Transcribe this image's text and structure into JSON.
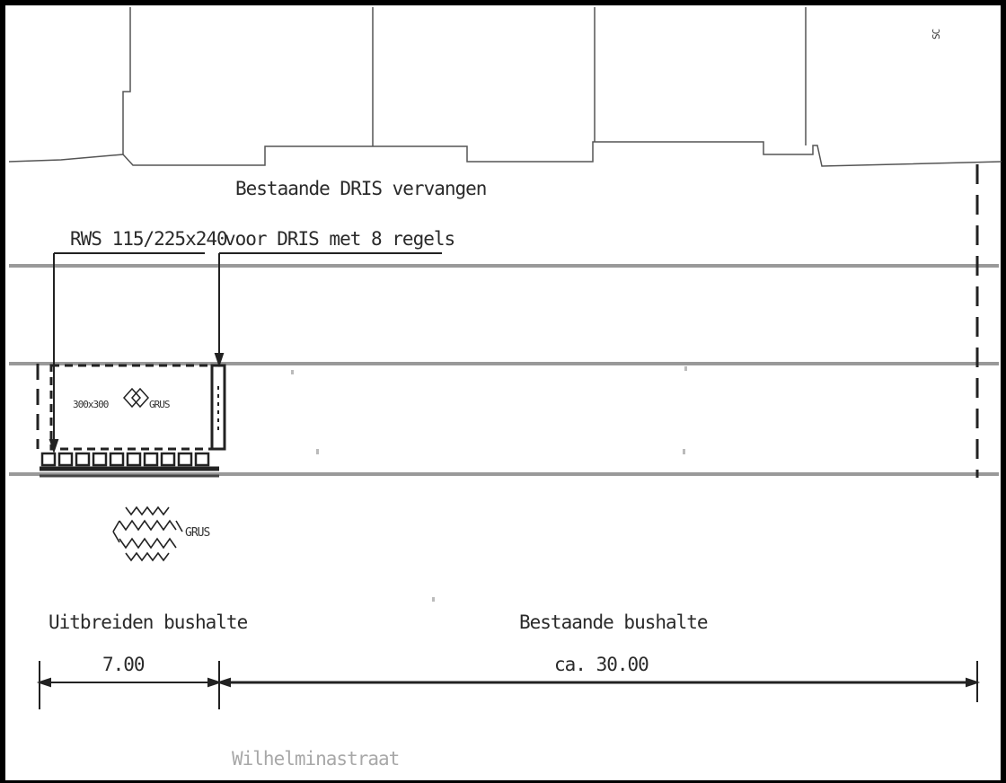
{
  "labels": {
    "rws": "RWS 115/225x240",
    "dris_line1": "Bestaande DRIS vervangen",
    "dris_line2": "voor DRIS met 8 regels",
    "grid_label": "300x300",
    "grid_material": "GRUS",
    "grus_symbol_label": "GRUS",
    "extend_title": "Uitbreiden bushalte",
    "extend_length": "7.00",
    "existing_title": "Bestaande bushalte",
    "existing_length": "ca. 30.00",
    "street_name": "Wilhelminastraat",
    "corner_mark": "SC"
  },
  "colors": {
    "line": "#333333",
    "frame": "#000000",
    "street_text": "#a8a8a8"
  }
}
